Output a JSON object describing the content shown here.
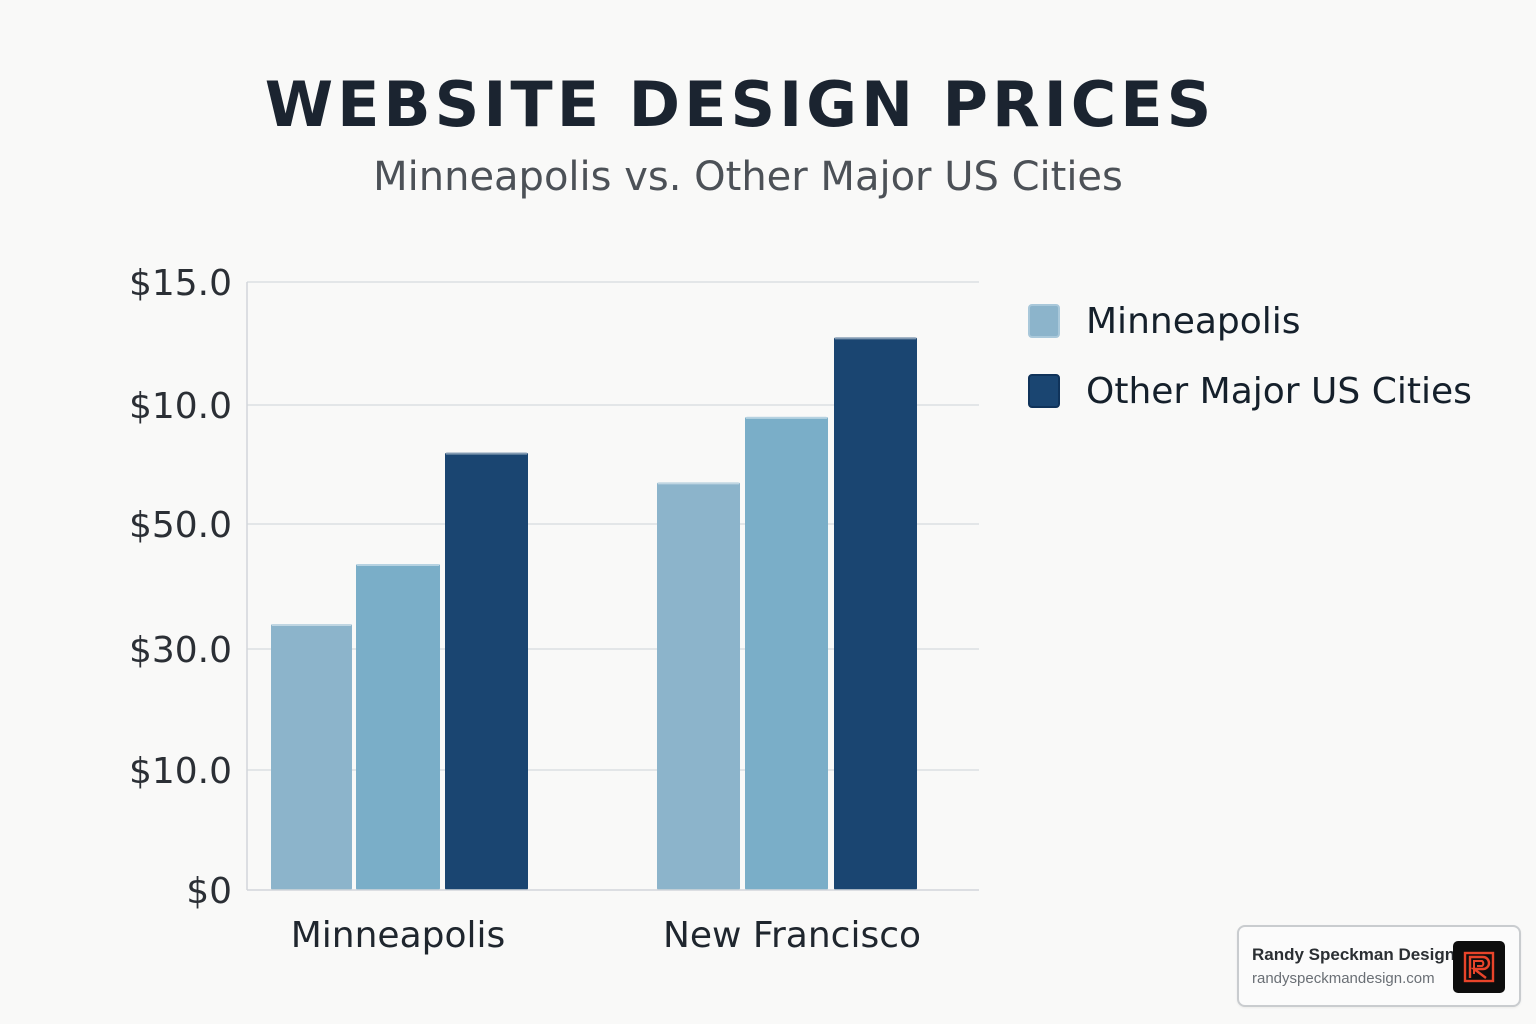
{
  "colors": {
    "minneapolis": "#8cb4cb",
    "mid": "#7aaec8",
    "other": "#1a4571",
    "grid": "#dcdfe2",
    "axis": "#d2d6da",
    "tick_text": "#2b2f35",
    "logo_accent": "#e8442a"
  },
  "badge": {
    "name": "Randy Speckman Design",
    "url": "randyspeckmandesign.com",
    "logo_icon": "rsd-logo-icon"
  },
  "chart_data": {
    "type": "bar",
    "title": "WEBSITE DESIGN PRICES",
    "subtitle": "Minneapolis vs. Other Major US Cities",
    "xlabel": "",
    "ylabel": "",
    "categories": [
      "Minneapolis",
      "New Francisco"
    ],
    "y_tick_labels": [
      "$0",
      "$10.0",
      "$30.0",
      "$50.0",
      "$10.0",
      "$15.0"
    ],
    "y_tick_positions": [
      0,
      1,
      2,
      3,
      4,
      5
    ],
    "ylim": [
      0,
      5
    ],
    "grid": true,
    "legend_position": "right",
    "legend": [
      {
        "label": "Minneapolis",
        "color_key": "minneapolis"
      },
      {
        "label": "Other Major US Cities",
        "color_key": "other"
      }
    ],
    "series": [
      {
        "values": [
          2.2,
          3.35
        ],
        "color_key": "minneapolis"
      },
      {
        "values": [
          2.68,
          3.9
        ],
        "color_key": "mid"
      },
      {
        "values": [
          3.6,
          4.55
        ],
        "color_key": "other"
      }
    ]
  }
}
